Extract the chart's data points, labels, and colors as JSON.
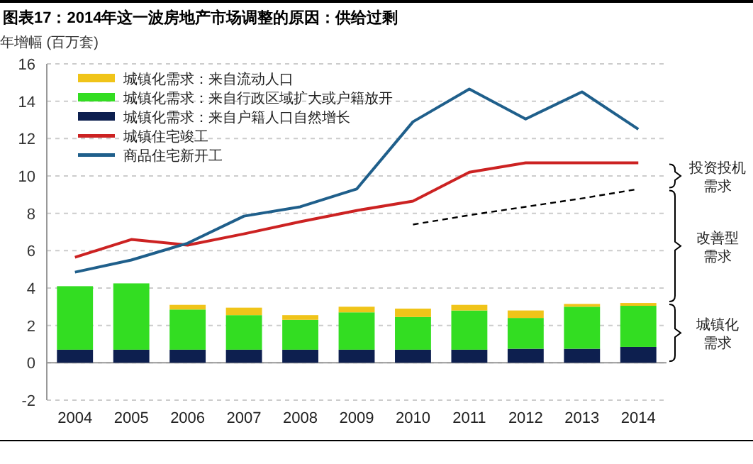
{
  "chart_data": {
    "type": "bar",
    "stacked": true,
    "title": "图表17：2014年这一波房地产市场调整的原因：供给过剩",
    "ylabel": "年增幅 (百万套)",
    "categories": [
      "2004",
      "2005",
      "2006",
      "2007",
      "2008",
      "2009",
      "2010",
      "2011",
      "2012",
      "2013",
      "2014"
    ],
    "ylim": [
      -2,
      16
    ],
    "yticks": [
      -2,
      0,
      2,
      4,
      6,
      8,
      10,
      12,
      14,
      16
    ],
    "grid": "y",
    "legend": "top left",
    "series": [
      {
        "name": "城镇化需求：来自户籍人口自然增长",
        "color": "#0d1f4f",
        "values": [
          0.7,
          0.7,
          0.7,
          0.7,
          0.7,
          0.7,
          0.7,
          0.7,
          0.75,
          0.75,
          0.85
        ]
      },
      {
        "name": "城镇化需求：来自行政区域扩大或户籍放开",
        "color": "#33dd22",
        "values": [
          3.4,
          3.55,
          2.15,
          1.85,
          1.6,
          2.0,
          1.75,
          2.1,
          1.65,
          2.25,
          2.2
        ]
      },
      {
        "name": "城镇化需求：来自流动人口",
        "color": "#f0c419",
        "values": [
          0,
          0,
          0.25,
          0.4,
          0.25,
          0.3,
          0.45,
          0.3,
          0.4,
          0.15,
          0.15
        ]
      },
      {
        "name": "城镇住宅竣工",
        "type": "line",
        "color": "#cc2222",
        "values": [
          5.65,
          6.6,
          6.3,
          6.9,
          7.55,
          8.15,
          8.65,
          10.2,
          10.7,
          10.7,
          10.7
        ]
      },
      {
        "name": "商品住宅新开工",
        "type": "line",
        "color": "#1f5f8b",
        "values": [
          4.85,
          5.5,
          6.4,
          7.85,
          8.35,
          9.3,
          12.9,
          14.65,
          13.05,
          14.5,
          12.5
        ]
      },
      {
        "type": "line",
        "color": "#000000",
        "line_style": "dashed",
        "values": [
          null,
          null,
          null,
          null,
          null,
          null,
          7.4,
          7.9,
          8.35,
          8.8,
          9.3
        ]
      }
    ],
    "annotations": [
      "投资投机需求",
      "改善型需求",
      "城镇化需求"
    ]
  }
}
